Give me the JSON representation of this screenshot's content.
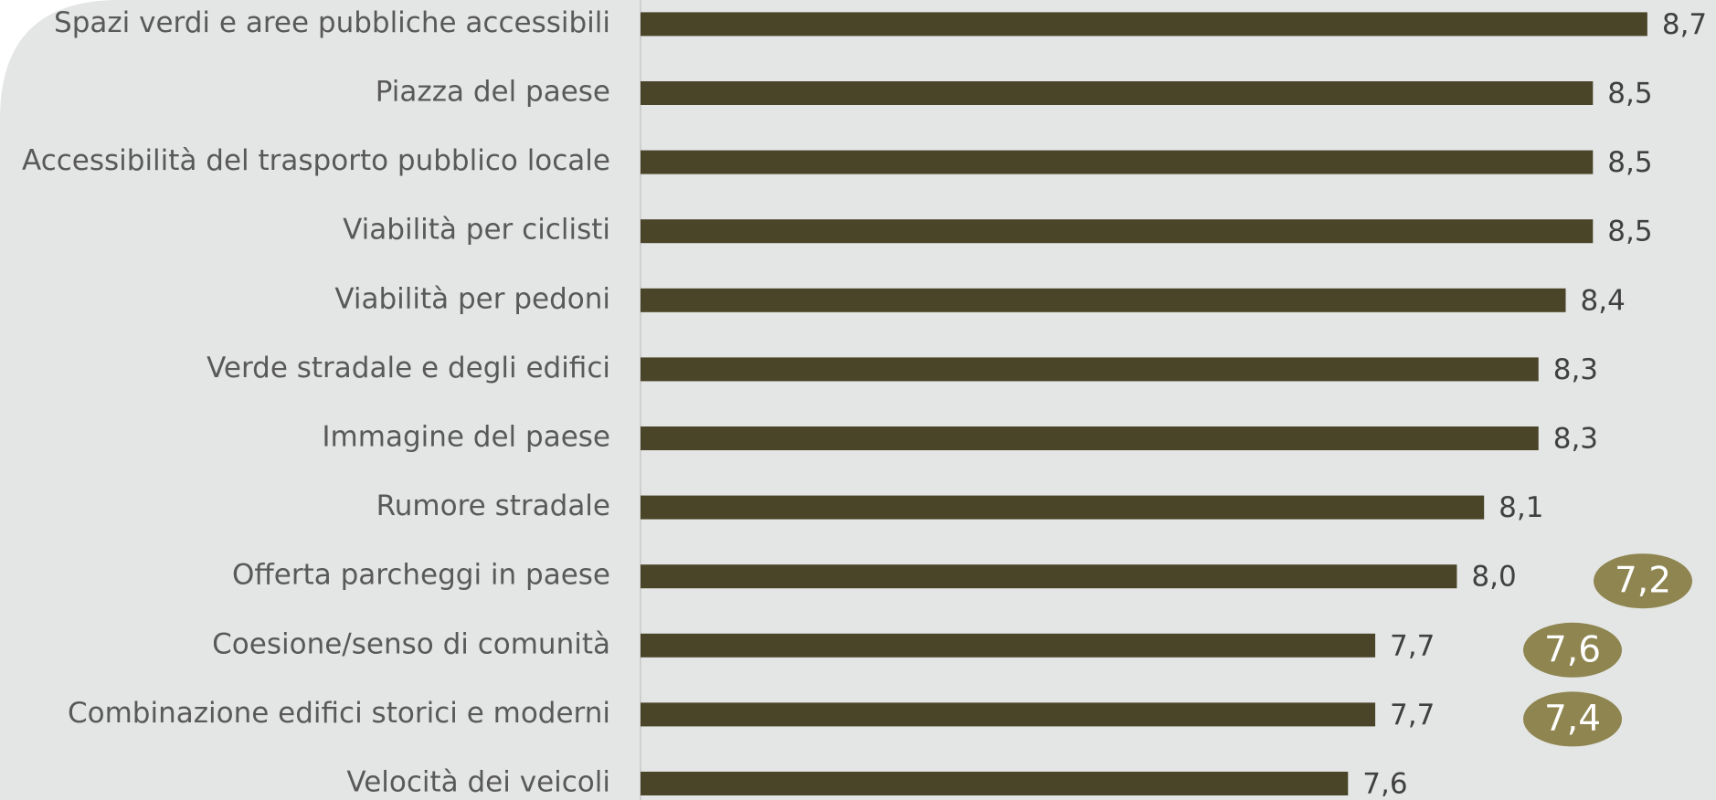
{
  "chart_data": {
    "type": "hbar",
    "categories": [
      "Spazi verdi e aree pubbliche accessibili",
      "Piazza del paese",
      "Accessibilità del trasporto pubblico locale",
      "Viabilità per ciclisti",
      "Viabilità per pedoni",
      "Verde stradale e degli edifici",
      "Immagine del paese",
      "Rumore stradale",
      "Offerta parcheggi in paese",
      "Coesione/senso di comunità",
      "Combinazione edifici storici e moderni",
      "Velocità dei veicoli"
    ],
    "values": [
      8.7,
      8.5,
      8.5,
      8.5,
      8.4,
      8.3,
      8.3,
      8.1,
      8.0,
      7.7,
      7.7,
      7.6
    ],
    "value_labels": [
      "8,7",
      "8,5",
      "8,5",
      "8,5",
      "8,4",
      "8,3",
      "8,3",
      "8,1",
      "8,0",
      "7,7",
      "7,7",
      "7,6"
    ],
    "color": "#4a4429",
    "xlim": [
      5,
      9
    ],
    "annotations": [
      "7,2",
      "7,6",
      "7,4"
    ],
    "annotation_color": "#8f8550"
  }
}
